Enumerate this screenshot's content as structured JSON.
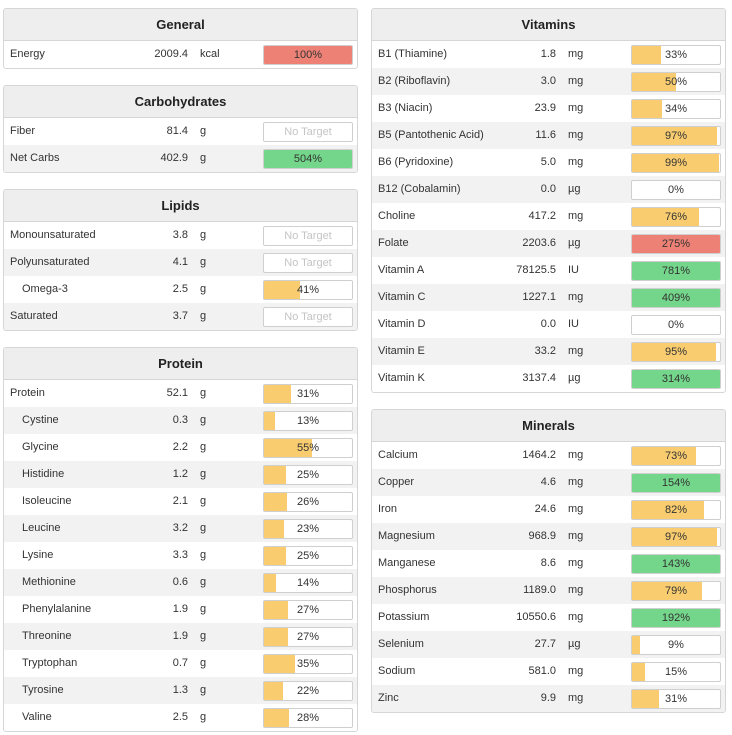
{
  "colors": {
    "low": "#f9cd6f",
    "good": "#73d68a",
    "over": "#ee8175",
    "empty": "#ffffff"
  },
  "left_column": [
    {
      "title": "General",
      "rows": [
        {
          "name": "Energy",
          "amount": "2009.4",
          "unit": "kcal",
          "percent_label": "100%",
          "fill_percent": 100,
          "status": "over"
        }
      ]
    },
    {
      "title": "Carbohydrates",
      "rows": [
        {
          "name": "Fiber",
          "amount": "81.4",
          "unit": "g",
          "percent_label": "No Target",
          "fill_percent": 0,
          "status": "none"
        },
        {
          "name": "Net Carbs",
          "amount": "402.9",
          "unit": "g",
          "percent_label": "504%",
          "fill_percent": 100,
          "status": "good"
        }
      ]
    },
    {
      "title": "Lipids",
      "rows": [
        {
          "name": "Monounsaturated",
          "amount": "3.8",
          "unit": "g",
          "percent_label": "No Target",
          "fill_percent": 0,
          "status": "none"
        },
        {
          "name": "Polyunsaturated",
          "amount": "4.1",
          "unit": "g",
          "percent_label": "No Target",
          "fill_percent": 0,
          "status": "none"
        },
        {
          "name": "Omega-3",
          "amount": "2.5",
          "unit": "g",
          "percent_label": "41%",
          "fill_percent": 41,
          "status": "low",
          "sub": true
        },
        {
          "name": "Saturated",
          "amount": "3.7",
          "unit": "g",
          "percent_label": "No Target",
          "fill_percent": 0,
          "status": "none"
        }
      ]
    },
    {
      "title": "Protein",
      "rows": [
        {
          "name": "Protein",
          "amount": "52.1",
          "unit": "g",
          "percent_label": "31%",
          "fill_percent": 31,
          "status": "low"
        },
        {
          "name": "Cystine",
          "amount": "0.3",
          "unit": "g",
          "percent_label": "13%",
          "fill_percent": 13,
          "status": "low",
          "sub": true
        },
        {
          "name": "Glycine",
          "amount": "2.2",
          "unit": "g",
          "percent_label": "55%",
          "fill_percent": 55,
          "status": "low",
          "sub": true
        },
        {
          "name": "Histidine",
          "amount": "1.2",
          "unit": "g",
          "percent_label": "25%",
          "fill_percent": 25,
          "status": "low",
          "sub": true
        },
        {
          "name": "Isoleucine",
          "amount": "2.1",
          "unit": "g",
          "percent_label": "26%",
          "fill_percent": 26,
          "status": "low",
          "sub": true
        },
        {
          "name": "Leucine",
          "amount": "3.2",
          "unit": "g",
          "percent_label": "23%",
          "fill_percent": 23,
          "status": "low",
          "sub": true
        },
        {
          "name": "Lysine",
          "amount": "3.3",
          "unit": "g",
          "percent_label": "25%",
          "fill_percent": 25,
          "status": "low",
          "sub": true
        },
        {
          "name": "Methionine",
          "amount": "0.6",
          "unit": "g",
          "percent_label": "14%",
          "fill_percent": 14,
          "status": "low",
          "sub": true
        },
        {
          "name": "Phenylalanine",
          "amount": "1.9",
          "unit": "g",
          "percent_label": "27%",
          "fill_percent": 27,
          "status": "low",
          "sub": true
        },
        {
          "name": "Threonine",
          "amount": "1.9",
          "unit": "g",
          "percent_label": "27%",
          "fill_percent": 27,
          "status": "low",
          "sub": true
        },
        {
          "name": "Tryptophan",
          "amount": "0.7",
          "unit": "g",
          "percent_label": "35%",
          "fill_percent": 35,
          "status": "low",
          "sub": true
        },
        {
          "name": "Tyrosine",
          "amount": "1.3",
          "unit": "g",
          "percent_label": "22%",
          "fill_percent": 22,
          "status": "low",
          "sub": true
        },
        {
          "name": "Valine",
          "amount": "2.5",
          "unit": "g",
          "percent_label": "28%",
          "fill_percent": 28,
          "status": "low",
          "sub": true
        }
      ]
    }
  ],
  "right_column": [
    {
      "title": "Vitamins",
      "rows": [
        {
          "name": "B1 (Thiamine)",
          "amount": "1.8",
          "unit": "mg",
          "percent_label": "33%",
          "fill_percent": 33,
          "status": "low"
        },
        {
          "name": "B2 (Riboflavin)",
          "amount": "3.0",
          "unit": "mg",
          "percent_label": "50%",
          "fill_percent": 50,
          "status": "low"
        },
        {
          "name": "B3 (Niacin)",
          "amount": "23.9",
          "unit": "mg",
          "percent_label": "34%",
          "fill_percent": 34,
          "status": "low"
        },
        {
          "name": "B5 (Pantothenic Acid)",
          "amount": "11.6",
          "unit": "mg",
          "percent_label": "97%",
          "fill_percent": 97,
          "status": "low"
        },
        {
          "name": "B6 (Pyridoxine)",
          "amount": "5.0",
          "unit": "mg",
          "percent_label": "99%",
          "fill_percent": 99,
          "status": "low"
        },
        {
          "name": "B12 (Cobalamin)",
          "amount": "0.0",
          "unit": "µg",
          "percent_label": "0%",
          "fill_percent": 0,
          "status": "low"
        },
        {
          "name": "Choline",
          "amount": "417.2",
          "unit": "mg",
          "percent_label": "76%",
          "fill_percent": 76,
          "status": "low"
        },
        {
          "name": "Folate",
          "amount": "2203.6",
          "unit": "µg",
          "percent_label": "275%",
          "fill_percent": 100,
          "status": "over"
        },
        {
          "name": "Vitamin A",
          "amount": "78125.5",
          "unit": "IU",
          "percent_label": "781%",
          "fill_percent": 100,
          "status": "good"
        },
        {
          "name": "Vitamin C",
          "amount": "1227.1",
          "unit": "mg",
          "percent_label": "409%",
          "fill_percent": 100,
          "status": "good"
        },
        {
          "name": "Vitamin D",
          "amount": "0.0",
          "unit": "IU",
          "percent_label": "0%",
          "fill_percent": 0,
          "status": "low"
        },
        {
          "name": "Vitamin E",
          "amount": "33.2",
          "unit": "mg",
          "percent_label": "95%",
          "fill_percent": 95,
          "status": "low"
        },
        {
          "name": "Vitamin K",
          "amount": "3137.4",
          "unit": "µg",
          "percent_label": "314%",
          "fill_percent": 100,
          "status": "good"
        }
      ]
    },
    {
      "title": "Minerals",
      "rows": [
        {
          "name": "Calcium",
          "amount": "1464.2",
          "unit": "mg",
          "percent_label": "73%",
          "fill_percent": 73,
          "status": "low"
        },
        {
          "name": "Copper",
          "amount": "4.6",
          "unit": "mg",
          "percent_label": "154%",
          "fill_percent": 100,
          "status": "good"
        },
        {
          "name": "Iron",
          "amount": "24.6",
          "unit": "mg",
          "percent_label": "82%",
          "fill_percent": 82,
          "status": "low"
        },
        {
          "name": "Magnesium",
          "amount": "968.9",
          "unit": "mg",
          "percent_label": "97%",
          "fill_percent": 97,
          "status": "low"
        },
        {
          "name": "Manganese",
          "amount": "8.6",
          "unit": "mg",
          "percent_label": "143%",
          "fill_percent": 100,
          "status": "good"
        },
        {
          "name": "Phosphorus",
          "amount": "1189.0",
          "unit": "mg",
          "percent_label": "79%",
          "fill_percent": 79,
          "status": "low"
        },
        {
          "name": "Potassium",
          "amount": "10550.6",
          "unit": "mg",
          "percent_label": "192%",
          "fill_percent": 100,
          "status": "good"
        },
        {
          "name": "Selenium",
          "amount": "27.7",
          "unit": "µg",
          "percent_label": "9%",
          "fill_percent": 9,
          "status": "low"
        },
        {
          "name": "Sodium",
          "amount": "581.0",
          "unit": "mg",
          "percent_label": "15%",
          "fill_percent": 15,
          "status": "low"
        },
        {
          "name": "Zinc",
          "amount": "9.9",
          "unit": "mg",
          "percent_label": "31%",
          "fill_percent": 31,
          "status": "low"
        }
      ]
    }
  ]
}
